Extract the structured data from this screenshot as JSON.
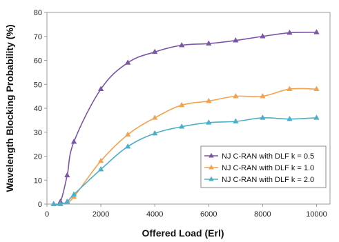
{
  "chart_data": {
    "type": "line",
    "title": "",
    "xlabel": "Offered Load (Erl)",
    "ylabel": "Wavelength Blocking Probability (%)",
    "xlim": [
      0,
      10500
    ],
    "ylim": [
      0,
      80
    ],
    "x_ticks": [
      0,
      2000,
      4000,
      6000,
      8000,
      10000
    ],
    "y_ticks": [
      0,
      10,
      20,
      30,
      40,
      50,
      60,
      70,
      80
    ],
    "grid": false,
    "legend_position": "bottom-right",
    "series": [
      {
        "name": "NJ C-RAN with DLF k = 0.5",
        "color": "#7B55A6",
        "marker": "triangle",
        "x": [
          250,
          500,
          750,
          1000,
          2000,
          3000,
          4000,
          5000,
          6000,
          7000,
          8000,
          9000,
          10000
        ],
        "y": [
          0,
          1,
          12,
          26,
          48,
          59,
          63.5,
          66.3,
          67,
          68.3,
          70,
          71.5,
          71.7
        ]
      },
      {
        "name": "NJ C-RAN with DLF k = 1.0",
        "color": "#F5A24F",
        "marker": "triangle",
        "x": [
          250,
          500,
          750,
          1000,
          2000,
          3000,
          4000,
          5000,
          6000,
          7000,
          8000,
          9000,
          10000
        ],
        "y": [
          0,
          0,
          1,
          3,
          18,
          29,
          36,
          41.3,
          43,
          45,
          45,
          48,
          48
        ]
      },
      {
        "name": "NJ C-RAN with DLF k = 2.0",
        "color": "#4BAFC7",
        "marker": "triangle",
        "x": [
          250,
          500,
          750,
          1000,
          2000,
          3000,
          4000,
          5000,
          6000,
          7000,
          8000,
          9000,
          10000
        ],
        "y": [
          0,
          0,
          1,
          4,
          14.5,
          24,
          29.5,
          32.3,
          34,
          34.5,
          36,
          35.5,
          36
        ]
      }
    ]
  }
}
